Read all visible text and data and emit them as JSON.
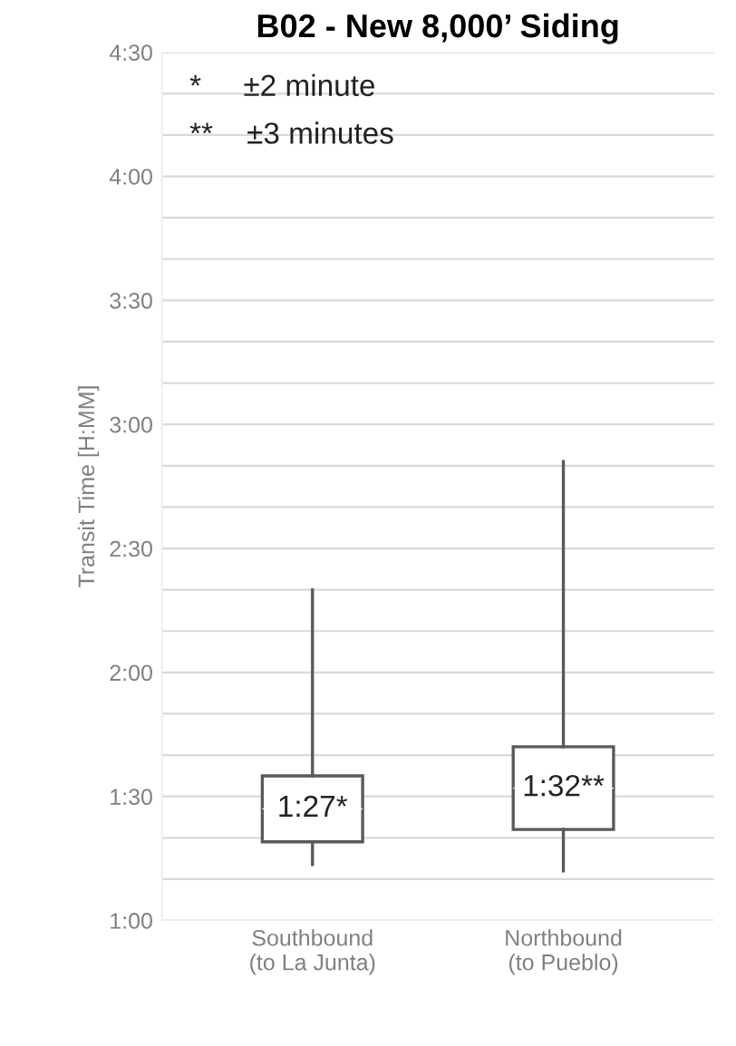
{
  "chart_data": {
    "type": "box",
    "title": "B02 - New 8,000’ Siding",
    "ylabel": "Transit Time [H:MM]",
    "categories": [
      "Southbound\n(to La Junta)",
      "Northbound\n(to Pueblo)"
    ],
    "series": [
      {
        "color": "#ffffff",
        "boxes": [
          {
            "low": 1.225,
            "q1": 1.317,
            "median": 1.45,
            "q3": 1.583,
            "high": 2.333
          },
          {
            "low": 1.2,
            "q1": 1.367,
            "median": 1.5333,
            "q3": 1.7,
            "high": 2.85
          }
        ],
        "value_labels": [
          "1:27*",
          "1:32**"
        ]
      }
    ],
    "ylim": [
      1,
      4.5
    ],
    "yticks": [
      {
        "value": 1,
        "label": "1:00"
      },
      {
        "value": 1.1667,
        "label": null
      },
      {
        "value": 1.3333,
        "label": null
      },
      {
        "value": 1.5,
        "label": "1:30"
      },
      {
        "value": 1.6667,
        "label": null
      },
      {
        "value": 1.8333,
        "label": null
      },
      {
        "value": 2,
        "label": "2:00"
      },
      {
        "value": 2.1667,
        "label": null
      },
      {
        "value": 2.3333,
        "label": null
      },
      {
        "value": 2.5,
        "label": "2:30"
      },
      {
        "value": 2.6667,
        "label": null
      },
      {
        "value": 2.8333,
        "label": null
      },
      {
        "value": 3,
        "label": "3:00"
      },
      {
        "value": 3.1667,
        "label": null
      },
      {
        "value": 3.3333,
        "label": null
      },
      {
        "value": 3.5,
        "label": "3:30"
      },
      {
        "value": 3.6667,
        "label": null
      },
      {
        "value": 3.8333,
        "label": null
      },
      {
        "value": 4,
        "label": "4:00"
      },
      {
        "value": 4.1667,
        "label": null
      },
      {
        "value": 4.3333,
        "label": null
      },
      {
        "value": 4.5,
        "label": "4:30"
      }
    ],
    "grid": "y",
    "annotations": [
      "*     ±2 minute",
      "**    ±3 minutes"
    ]
  }
}
